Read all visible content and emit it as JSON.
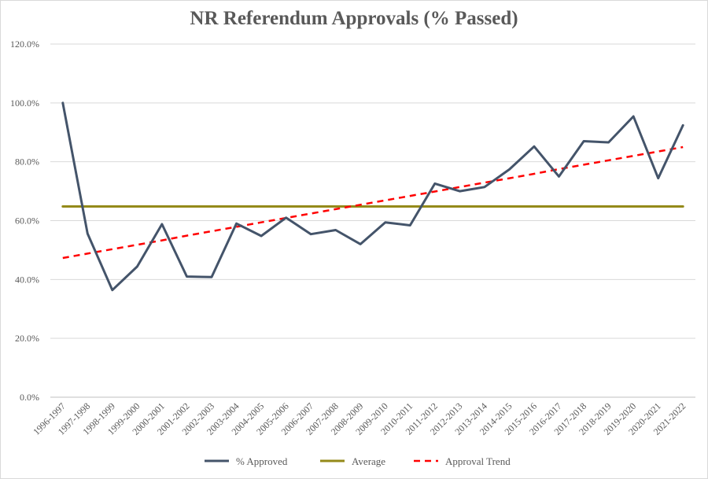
{
  "chart_data": {
    "type": "line",
    "title": "NR Referendum Approvals (% Passed)",
    "xlabel": "",
    "ylabel": "",
    "ylim": [
      0,
      120
    ],
    "y_tick_labels": [
      "0.0%",
      "20.0%",
      "40.0%",
      "60.0%",
      "80.0%",
      "100.0%",
      "120.0%"
    ],
    "grid": true,
    "legend_position": "bottom",
    "categories": [
      "1996-1997",
      "1997-1998",
      "1998-1999",
      "1999-2000",
      "2000-2001",
      "2001-2002",
      "2002-2003",
      "2003-2004",
      "2004-2005",
      "2005-2006",
      "2006-2007",
      "2007-2008",
      "2008-2009",
      "2009-2010",
      "2010-2011",
      "2011-2012",
      "2012-2013",
      "2013-2014",
      "2014-2015",
      "2015-2016",
      "2016-2017",
      "2017-2018",
      "2018-2019",
      "2019-2020",
      "2020-2021",
      "2021-2022"
    ],
    "series": [
      {
        "name": "% Approved",
        "style": "solid",
        "color": "#44546a",
        "values": [
          100.0,
          55.6,
          36.4,
          44.4,
          58.8,
          41.0,
          40.8,
          59.0,
          54.8,
          61.0,
          55.4,
          56.8,
          52.0,
          59.4,
          58.4,
          72.6,
          70.0,
          71.4,
          77.4,
          85.2,
          75.0,
          87.0,
          86.6,
          95.4,
          74.4,
          92.4
        ]
      },
      {
        "name": "Average",
        "style": "solid",
        "color": "#948a1a",
        "values": [
          64.8,
          64.8,
          64.8,
          64.8,
          64.8,
          64.8,
          64.8,
          64.8,
          64.8,
          64.8,
          64.8,
          64.8,
          64.8,
          64.8,
          64.8,
          64.8,
          64.8,
          64.8,
          64.8,
          64.8,
          64.8,
          64.8,
          64.8,
          64.8,
          64.8,
          64.8
        ]
      },
      {
        "name": "Approval Trend",
        "style": "dashed",
        "color": "#ff0000",
        "values": [
          47.3,
          48.8,
          50.3,
          51.8,
          53.3,
          54.9,
          56.4,
          57.9,
          59.4,
          60.9,
          62.4,
          63.9,
          65.4,
          66.9,
          68.4,
          69.9,
          71.4,
          72.9,
          74.4,
          75.9,
          77.5,
          79.0,
          80.5,
          82.0,
          83.5,
          85.0
        ]
      }
    ]
  }
}
